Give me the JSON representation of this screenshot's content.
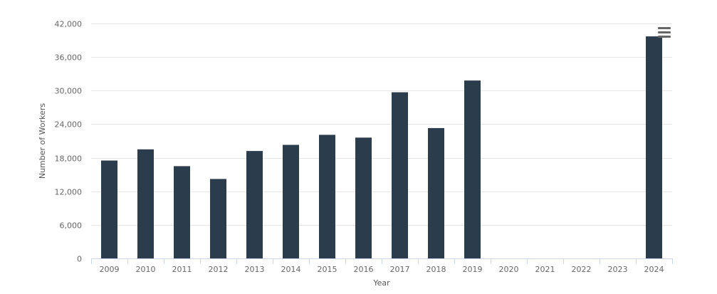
{
  "chart_data": {
    "type": "bar",
    "title": "",
    "xlabel": "Year",
    "ylabel": "Number of Workers",
    "categories": [
      "2009",
      "2010",
      "2011",
      "2012",
      "2013",
      "2014",
      "2015",
      "2016",
      "2017",
      "2018",
      "2019",
      "2020",
      "2021",
      "2022",
      "2023",
      "2024"
    ],
    "values": [
      17500,
      19500,
      16500,
      14200,
      19200,
      20300,
      22100,
      21600,
      29700,
      23300,
      31800,
      null,
      null,
      null,
      null,
      39700
    ],
    "ylim": [
      0,
      42000
    ],
    "yticks": [
      0,
      6000,
      12000,
      18000,
      24000,
      30000,
      36000,
      42000
    ],
    "ytick_labels": [
      "0",
      "6,000",
      "12,000",
      "18,000",
      "24,000",
      "30,000",
      "36,000",
      "42,000"
    ],
    "grid": true,
    "bar_color": "#2b3d4c"
  },
  "menu": {
    "icon": "hamburger-menu-icon"
  }
}
